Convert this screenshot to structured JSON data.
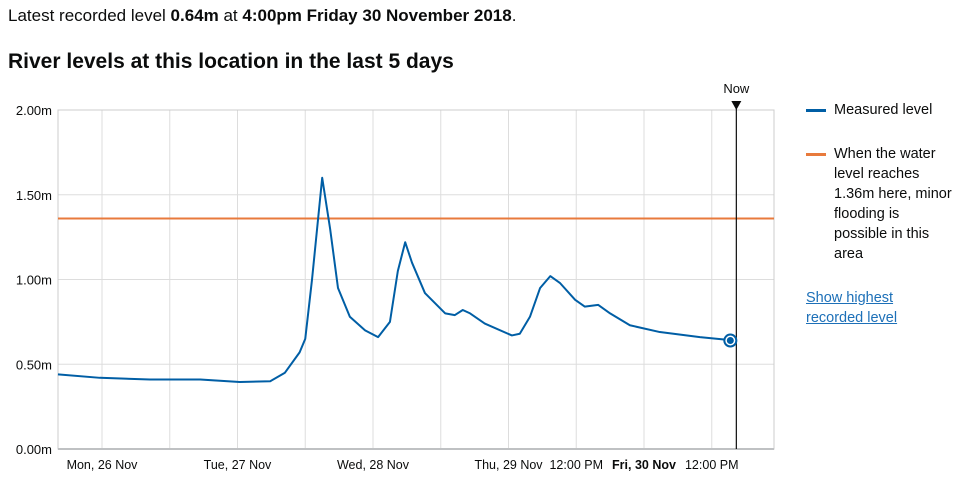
{
  "latest": {
    "prefix": "Latest recorded level ",
    "level": "0.64m",
    "at": " at ",
    "time": "4:00pm Friday 30 November 2018",
    "suffix": "."
  },
  "heading": "River levels at this location in the last 5 days",
  "legend": {
    "measured": "Measured level",
    "threshold": "When the water level reaches 1.36m here, minor flooding is possible in this area",
    "link": "Show highest recorded level"
  },
  "colors": {
    "measured": "#005ea5",
    "threshold": "#e87a3c",
    "grid": "#dddddd"
  },
  "chart_data": {
    "type": "line",
    "title": "River levels at this location in the last 5 days",
    "xunit": "hours since Mon 26 Nov 00:00",
    "xlim": [
      -7.8,
      118
    ],
    "ylim": [
      0,
      2
    ],
    "yticks": [
      {
        "v": 0,
        "label": "0.00m"
      },
      {
        "v": 0.5,
        "label": "0.50m"
      },
      {
        "v": 1,
        "label": "1.00m"
      },
      {
        "v": 1.5,
        "label": "1.50m"
      },
      {
        "v": 2,
        "label": "2.00m"
      }
    ],
    "xticks": [
      {
        "h": 0,
        "label": "Mon, 26 Nov",
        "bold": false
      },
      {
        "h": 24,
        "label": "Tue, 27 Nov",
        "bold": false
      },
      {
        "h": 48,
        "label": "Wed, 28 Nov",
        "bold": false
      },
      {
        "h": 72,
        "label": "Thu, 29 Nov",
        "bold": false
      },
      {
        "h": 84,
        "label": "12:00 PM",
        "bold": false
      },
      {
        "h": 96,
        "label": "Fri, 30 Nov",
        "bold": true
      },
      {
        "h": 108,
        "label": "12:00 PM",
        "bold": false
      }
    ],
    "gridlines_h": [
      0,
      12,
      24,
      36,
      48,
      60,
      72,
      84,
      96,
      108
    ],
    "now": {
      "h": 112,
      "label": "Now"
    },
    "threshold": 1.36,
    "series": [
      {
        "name": "Measured level",
        "x": [
          -7.8,
          -0.4,
          8.5,
          17.4,
          24.4,
          29.8,
          32.4,
          35,
          36,
          37.2,
          39,
          40.4,
          41.8,
          43.9,
          46.6,
          48.9,
          51,
          52.4,
          53.7,
          54.9,
          57.2,
          60.8,
          62.5,
          63.9,
          65.2,
          67.8,
          72.6,
          74,
          75.8,
          77.6,
          79.4,
          81.1,
          83.8,
          85.5,
          87.9,
          90,
          93.5,
          98.8,
          105.9,
          112
        ],
        "y": [
          0.44,
          0.42,
          0.41,
          0.41,
          0.395,
          0.4,
          0.45,
          0.57,
          0.65,
          1.0,
          1.6,
          1.3,
          0.95,
          0.78,
          0.7,
          0.66,
          0.75,
          1.05,
          1.22,
          1.1,
          0.92,
          0.8,
          0.79,
          0.82,
          0.8,
          0.74,
          0.67,
          0.68,
          0.78,
          0.95,
          1.02,
          0.98,
          0.88,
          0.84,
          0.85,
          0.8,
          0.73,
          0.69,
          0.66,
          0.64
        ]
      }
    ]
  }
}
